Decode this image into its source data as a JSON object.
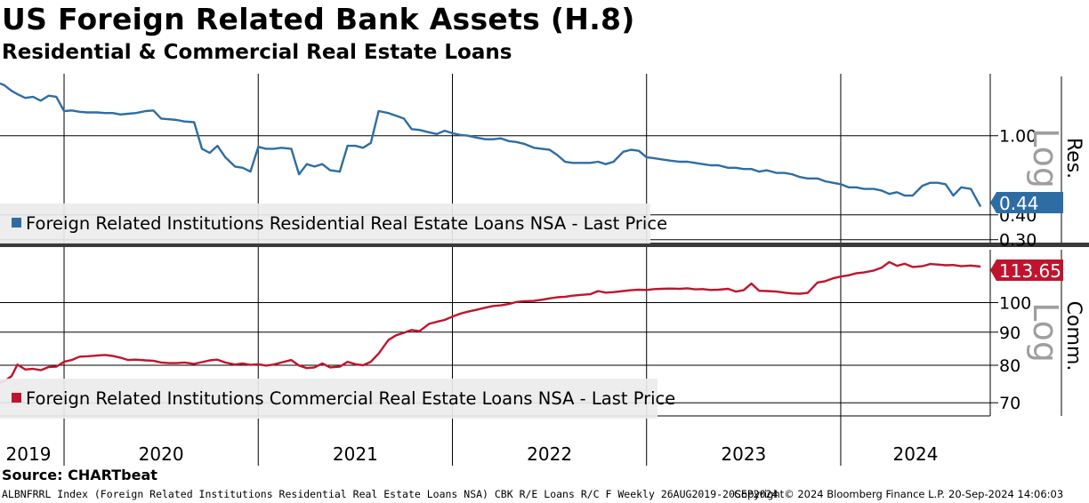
{
  "header": {
    "title": "US Foreign Related Bank Assets (H.8)",
    "subtitle": "Residential & Commercial Real Estate Loans"
  },
  "source": "Source: CHARTbeat",
  "footer": {
    "left": "ALBNFRRL Index (Foreign Related Institutions Residential Real Estate Loans NSA) CBK R/E Loans R/C F  Weekly 26AUG2019-20SEP2024",
    "copyright": "Copyright© 2024 Bloomberg Finance L.P.",
    "timestamp": "20-Sep-2024 14:06:03"
  },
  "colors": {
    "residential": "#2e6da4",
    "commercial": "#c0142e",
    "grid": "#000000",
    "legend_bg": "#ececec"
  },
  "chart_data": [
    {
      "type": "line",
      "panel": "top",
      "axis_title": "Res.",
      "scale_note": "Log",
      "yscale": "log",
      "ylim": [
        0.29,
        2.05
      ],
      "yticks": [
        1.0,
        0.4,
        0.3
      ],
      "ytick_labels": [
        "1.00",
        "0.40",
        "0.30"
      ],
      "last_value_label": "0.44",
      "series": [
        {
          "name": "Foreign Related Institutions Residential Real Estate Loans NSA - Last Price",
          "color": "#2e6da4",
          "x": [
            2019.65,
            2019.69,
            2019.73,
            2019.76,
            2019.8,
            2019.84,
            2019.88,
            2019.92,
            2019.96,
            2020.0,
            2020.04,
            2020.08,
            2020.12,
            2020.17,
            2020.21,
            2020.25,
            2020.29,
            2020.33,
            2020.37,
            2020.42,
            2020.46,
            2020.5,
            2020.54,
            2020.58,
            2020.62,
            2020.67,
            2020.71,
            2020.75,
            2020.79,
            2020.83,
            2020.88,
            2020.92,
            2020.96,
            2021.0,
            2021.04,
            2021.08,
            2021.12,
            2021.17,
            2021.21,
            2021.25,
            2021.29,
            2021.33,
            2021.37,
            2021.42,
            2021.46,
            2021.5,
            2021.54,
            2021.58,
            2021.62,
            2021.67,
            2021.71,
            2021.75,
            2021.79,
            2021.83,
            2021.88,
            2021.92,
            2021.96,
            2022.0,
            2022.04,
            2022.08,
            2022.12,
            2022.17,
            2022.21,
            2022.25,
            2022.29,
            2022.33,
            2022.37,
            2022.42,
            2022.46,
            2022.5,
            2022.54,
            2022.58,
            2022.62,
            2022.67,
            2022.71,
            2022.75,
            2022.79,
            2022.83,
            2022.88,
            2022.92,
            2022.96,
            2023.0,
            2023.04,
            2023.08,
            2023.12,
            2023.17,
            2023.21,
            2023.25,
            2023.29,
            2023.33,
            2023.37,
            2023.42,
            2023.46,
            2023.5,
            2023.54,
            2023.58,
            2023.62,
            2023.67,
            2023.71,
            2023.75,
            2023.79,
            2023.83,
            2023.88,
            2023.92,
            2023.96,
            2024.0,
            2024.04,
            2024.08,
            2024.12,
            2024.17,
            2024.21,
            2024.25,
            2024.29,
            2024.33,
            2024.37,
            2024.42,
            2024.46,
            2024.5,
            2024.54,
            2024.58,
            2024.62,
            2024.67,
            2024.72
          ],
          "values": [
            1.86,
            1.8,
            1.68,
            1.62,
            1.55,
            1.57,
            1.5,
            1.59,
            1.57,
            1.33,
            1.34,
            1.32,
            1.31,
            1.31,
            1.3,
            1.3,
            1.28,
            1.29,
            1.3,
            1.33,
            1.34,
            1.22,
            1.21,
            1.2,
            1.18,
            1.17,
            0.86,
            0.82,
            0.89,
            0.78,
            0.7,
            0.69,
            0.66,
            0.88,
            0.86,
            0.86,
            0.87,
            0.86,
            0.64,
            0.72,
            0.7,
            0.72,
            0.67,
            0.66,
            0.89,
            0.89,
            0.87,
            0.92,
            1.33,
            1.3,
            1.26,
            1.22,
            1.08,
            1.07,
            1.04,
            1.02,
            1.06,
            1.03,
            1.01,
            1.0,
            0.98,
            0.96,
            0.96,
            0.97,
            0.94,
            0.93,
            0.91,
            0.87,
            0.86,
            0.85,
            0.8,
            0.74,
            0.73,
            0.73,
            0.73,
            0.74,
            0.72,
            0.74,
            0.83,
            0.85,
            0.84,
            0.78,
            0.77,
            0.76,
            0.75,
            0.74,
            0.74,
            0.73,
            0.72,
            0.71,
            0.71,
            0.69,
            0.69,
            0.68,
            0.68,
            0.66,
            0.67,
            0.65,
            0.65,
            0.64,
            0.62,
            0.61,
            0.61,
            0.59,
            0.58,
            0.57,
            0.55,
            0.55,
            0.54,
            0.54,
            0.53,
            0.51,
            0.52,
            0.5,
            0.5,
            0.56,
            0.58,
            0.58,
            0.57,
            0.5,
            0.55,
            0.54,
            0.44
          ]
        }
      ]
    },
    {
      "type": "line",
      "panel": "bottom",
      "axis_title": "Comm.",
      "scale_note": "Log",
      "yscale": "log",
      "ylim": [
        66.8,
        120.7
      ],
      "yticks": [
        100,
        90,
        80,
        70
      ],
      "ytick_labels": [
        "100",
        "90",
        "80",
        "70"
      ],
      "last_value_label": "113.65",
      "series": [
        {
          "name": "Foreign Related Institutions Commercial Real Estate Loans NSA - Last Price",
          "color": "#c0142e",
          "x": [
            2019.65,
            2019.69,
            2019.73,
            2019.76,
            2019.8,
            2019.84,
            2019.88,
            2019.92,
            2019.96,
            2020.0,
            2020.04,
            2020.08,
            2020.12,
            2020.17,
            2020.21,
            2020.25,
            2020.29,
            2020.33,
            2020.37,
            2020.42,
            2020.46,
            2020.5,
            2020.54,
            2020.58,
            2020.62,
            2020.67,
            2020.71,
            2020.75,
            2020.79,
            2020.83,
            2020.88,
            2020.92,
            2020.96,
            2021.0,
            2021.04,
            2021.08,
            2021.12,
            2021.17,
            2021.21,
            2021.25,
            2021.29,
            2021.33,
            2021.37,
            2021.42,
            2021.46,
            2021.5,
            2021.54,
            2021.58,
            2021.62,
            2021.67,
            2021.71,
            2021.75,
            2021.79,
            2021.83,
            2021.88,
            2021.92,
            2021.96,
            2022.0,
            2022.04,
            2022.08,
            2022.12,
            2022.17,
            2022.21,
            2022.25,
            2022.29,
            2022.33,
            2022.37,
            2022.42,
            2022.46,
            2022.5,
            2022.54,
            2022.58,
            2022.62,
            2022.67,
            2022.71,
            2022.75,
            2022.79,
            2022.83,
            2022.88,
            2022.92,
            2022.96,
            2023.0,
            2023.04,
            2023.08,
            2023.12,
            2023.17,
            2023.21,
            2023.25,
            2023.29,
            2023.33,
            2023.37,
            2023.42,
            2023.46,
            2023.5,
            2023.54,
            2023.58,
            2023.62,
            2023.67,
            2023.71,
            2023.75,
            2023.79,
            2023.83,
            2023.88,
            2023.92,
            2023.96,
            2024.0,
            2024.04,
            2024.08,
            2024.12,
            2024.17,
            2024.21,
            2024.25,
            2024.29,
            2024.33,
            2024.37,
            2024.42,
            2024.46,
            2024.5,
            2024.54,
            2024.58,
            2024.62,
            2024.67,
            2024.72
          ],
          "values": [
            75.0,
            75.5,
            77.0,
            80.2,
            78.8,
            79.0,
            78.6,
            79.5,
            79.6,
            81.0,
            81.5,
            82.5,
            82.6,
            82.8,
            83.0,
            82.7,
            82.2,
            81.5,
            81.6,
            81.4,
            81.3,
            80.8,
            80.6,
            80.6,
            80.8,
            80.4,
            80.9,
            81.4,
            81.6,
            80.8,
            80.2,
            80.5,
            80.1,
            80.3,
            79.9,
            80.2,
            80.8,
            81.5,
            79.9,
            79.2,
            79.4,
            80.5,
            79.4,
            79.6,
            81.0,
            80.3,
            80.0,
            81.0,
            83.4,
            87.5,
            89.0,
            89.8,
            90.7,
            90.3,
            92.7,
            93.4,
            94.0,
            95.1,
            96.1,
            96.8,
            97.4,
            98.2,
            98.8,
            99.0,
            99.5,
            100.2,
            100.5,
            100.6,
            101.0,
            101.5,
            101.9,
            102.1,
            102.5,
            102.8,
            103.0,
            104.2,
            103.6,
            103.8,
            104.2,
            104.5,
            104.7,
            104.6,
            104.9,
            105.0,
            105.1,
            105.0,
            105.2,
            104.8,
            104.9,
            104.6,
            104.7,
            105.0,
            104.0,
            104.5,
            107.0,
            104.3,
            104.2,
            104.0,
            103.6,
            103.3,
            103.2,
            103.5,
            107.4,
            107.9,
            109.0,
            109.7,
            110.2,
            111.0,
            111.3,
            112.1,
            113.2,
            115.5,
            114.0,
            114.8,
            113.5,
            113.8,
            114.7,
            114.5,
            114.2,
            114.3,
            113.8,
            114.1,
            113.65
          ]
        }
      ]
    }
  ],
  "x_axis": {
    "years": [
      "2019",
      "2020",
      "2021",
      "2022",
      "2023",
      "2024"
    ]
  }
}
